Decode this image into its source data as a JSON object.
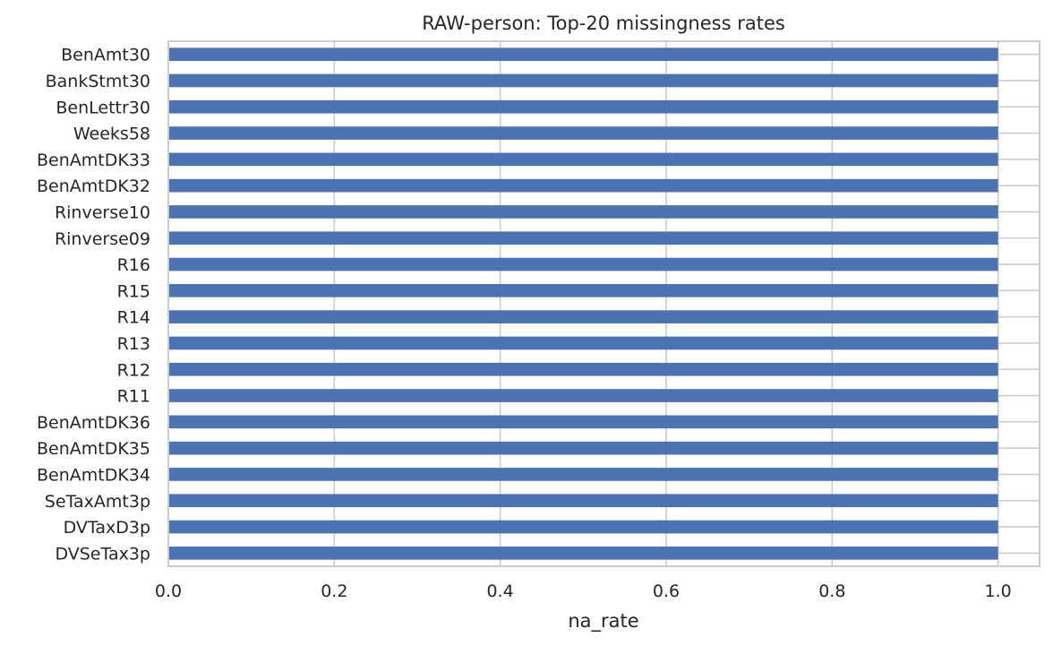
{
  "chart_data": {
    "type": "bar",
    "orientation": "horizontal",
    "title": "RAW-person: Top-20 missingness rates",
    "xlabel": "na_rate",
    "ylabel": "",
    "xlim": [
      0.0,
      1.05
    ],
    "xticks": [
      "0.0",
      "0.2",
      "0.4",
      "0.6",
      "0.8",
      "1.0"
    ],
    "xtick_values": [
      0.0,
      0.2,
      0.4,
      0.6,
      0.8,
      1.0
    ],
    "grid": true,
    "legend": "none",
    "categories": [
      "BenAmt30",
      "BankStmt30",
      "BenLettr30",
      "Weeks58",
      "BenAmtDK33",
      "BenAmtDK32",
      "Rinverse10",
      "Rinverse09",
      "R16",
      "R15",
      "R14",
      "R13",
      "R12",
      "R11",
      "BenAmtDK36",
      "BenAmtDK35",
      "BenAmtDK34",
      "SeTaxAmt3p",
      "DVTaxD3p",
      "DVSeTax3p"
    ],
    "values": [
      1.0,
      1.0,
      1.0,
      1.0,
      1.0,
      1.0,
      1.0,
      1.0,
      1.0,
      1.0,
      1.0,
      1.0,
      1.0,
      1.0,
      1.0,
      1.0,
      1.0,
      1.0,
      1.0,
      1.0
    ],
    "colors": {
      "bar": "#4c72b0",
      "grid": "#cccccc",
      "frame": "#cccccc",
      "text": "#262626"
    }
  }
}
